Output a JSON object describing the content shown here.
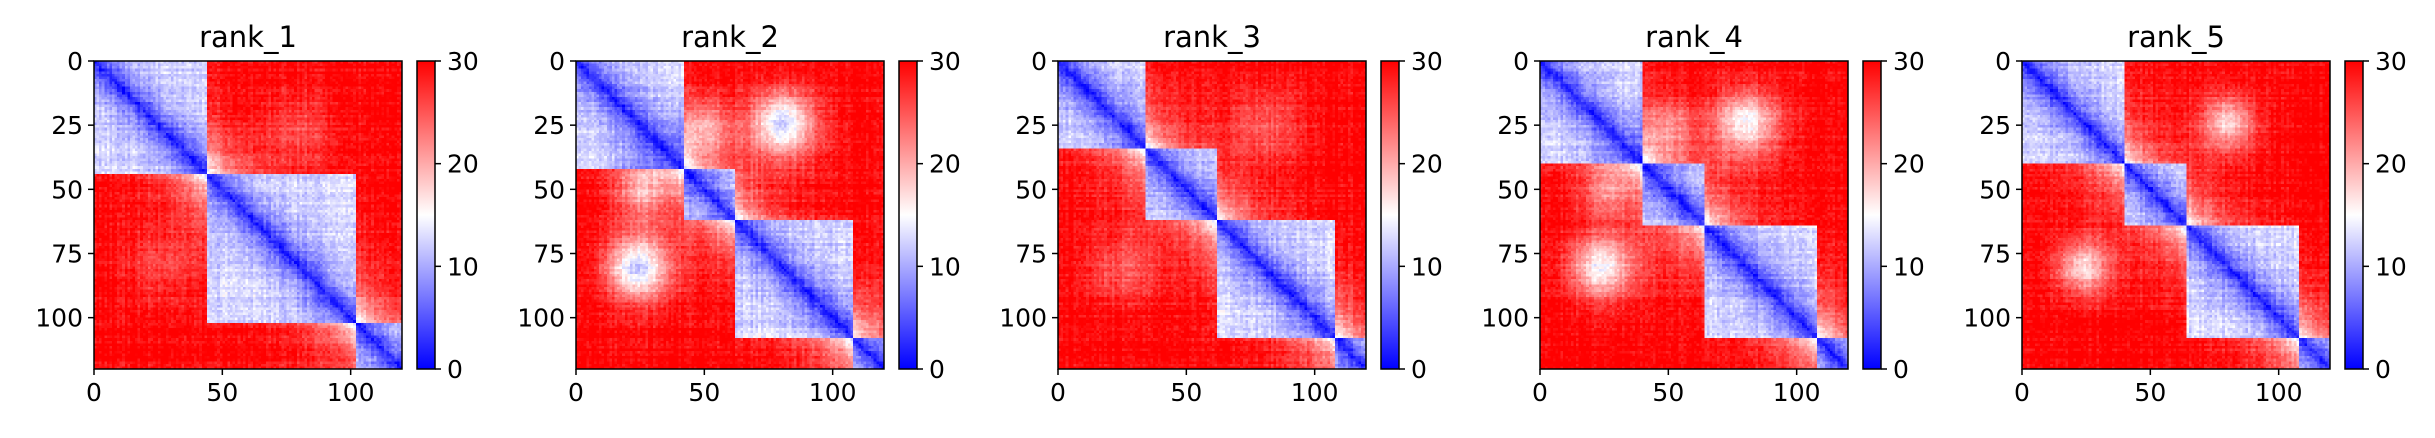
{
  "chart_data": {
    "type": "heatmap",
    "colormap": {
      "name": "bwr",
      "low": "#0000ff",
      "mid": "#ffffff",
      "high": "#ff0000"
    },
    "panels": [
      {
        "title": "rank_1",
        "n": 120,
        "xlim": [
          0,
          120
        ],
        "ylim": [
          120,
          0
        ],
        "xticks": [
          0,
          50,
          100
        ],
        "yticks": [
          0,
          25,
          50,
          75,
          100
        ],
        "colorbar": {
          "vmin": 0,
          "vmax": 30,
          "ticks": [
            0,
            10,
            20,
            30
          ]
        },
        "domains": [
          [
            0,
            44
          ],
          [
            44,
            102
          ],
          [
            102,
            120
          ]
        ],
        "blobs": [
          [
            25,
            80,
            14,
            4
          ]
        ]
      },
      {
        "title": "rank_2",
        "n": 120,
        "xlim": [
          0,
          120
        ],
        "ylim": [
          120,
          0
        ],
        "xticks": [
          0,
          50,
          100
        ],
        "yticks": [
          0,
          25,
          50,
          75,
          100
        ],
        "colorbar": {
          "vmin": 0,
          "vmax": 30,
          "ticks": [
            0,
            10,
            20,
            30
          ]
        },
        "domains": [
          [
            0,
            42
          ],
          [
            42,
            62
          ],
          [
            62,
            108
          ],
          [
            108,
            120
          ]
        ],
        "blobs": [
          [
            25,
            80,
            14,
            11
          ],
          [
            25,
            50,
            10,
            8
          ],
          [
            80,
            22,
            10,
            7
          ]
        ]
      },
      {
        "title": "rank_3",
        "n": 120,
        "xlim": [
          0,
          120
        ],
        "ylim": [
          120,
          0
        ],
        "xticks": [
          0,
          50,
          100
        ],
        "yticks": [
          0,
          25,
          50,
          75,
          100
        ],
        "colorbar": {
          "vmin": 0,
          "vmax": 30,
          "ticks": [
            0,
            10,
            20,
            30
          ]
        },
        "domains": [
          [
            0,
            34
          ],
          [
            34,
            62
          ],
          [
            62,
            108
          ],
          [
            108,
            120
          ]
        ],
        "blobs": [
          [
            25,
            80,
            14,
            5
          ]
        ]
      },
      {
        "title": "rank_4",
        "n": 120,
        "xlim": [
          0,
          120
        ],
        "ylim": [
          120,
          0
        ],
        "xticks": [
          0,
          50,
          100
        ],
        "yticks": [
          0,
          25,
          50,
          75,
          100
        ],
        "colorbar": {
          "vmin": 0,
          "vmax": 30,
          "ticks": [
            0,
            10,
            20,
            30
          ]
        },
        "domains": [
          [
            0,
            40
          ],
          [
            40,
            64
          ],
          [
            64,
            108
          ],
          [
            108,
            120
          ]
        ],
        "blobs": [
          [
            25,
            80,
            14,
            9
          ],
          [
            80,
            22,
            10,
            6
          ],
          [
            25,
            50,
            10,
            6
          ]
        ]
      },
      {
        "title": "rank_5",
        "n": 120,
        "xlim": [
          0,
          120
        ],
        "ylim": [
          120,
          0
        ],
        "xticks": [
          0,
          50,
          100
        ],
        "yticks": [
          0,
          25,
          50,
          75,
          100
        ],
        "colorbar": {
          "vmin": 0,
          "vmax": 30,
          "ticks": [
            0,
            10,
            20,
            30
          ]
        },
        "domains": [
          [
            0,
            40
          ],
          [
            40,
            64
          ],
          [
            64,
            108
          ],
          [
            108,
            120
          ]
        ],
        "blobs": [
          [
            25,
            80,
            12,
            8
          ],
          [
            80,
            22,
            8,
            5
          ]
        ]
      }
    ]
  }
}
